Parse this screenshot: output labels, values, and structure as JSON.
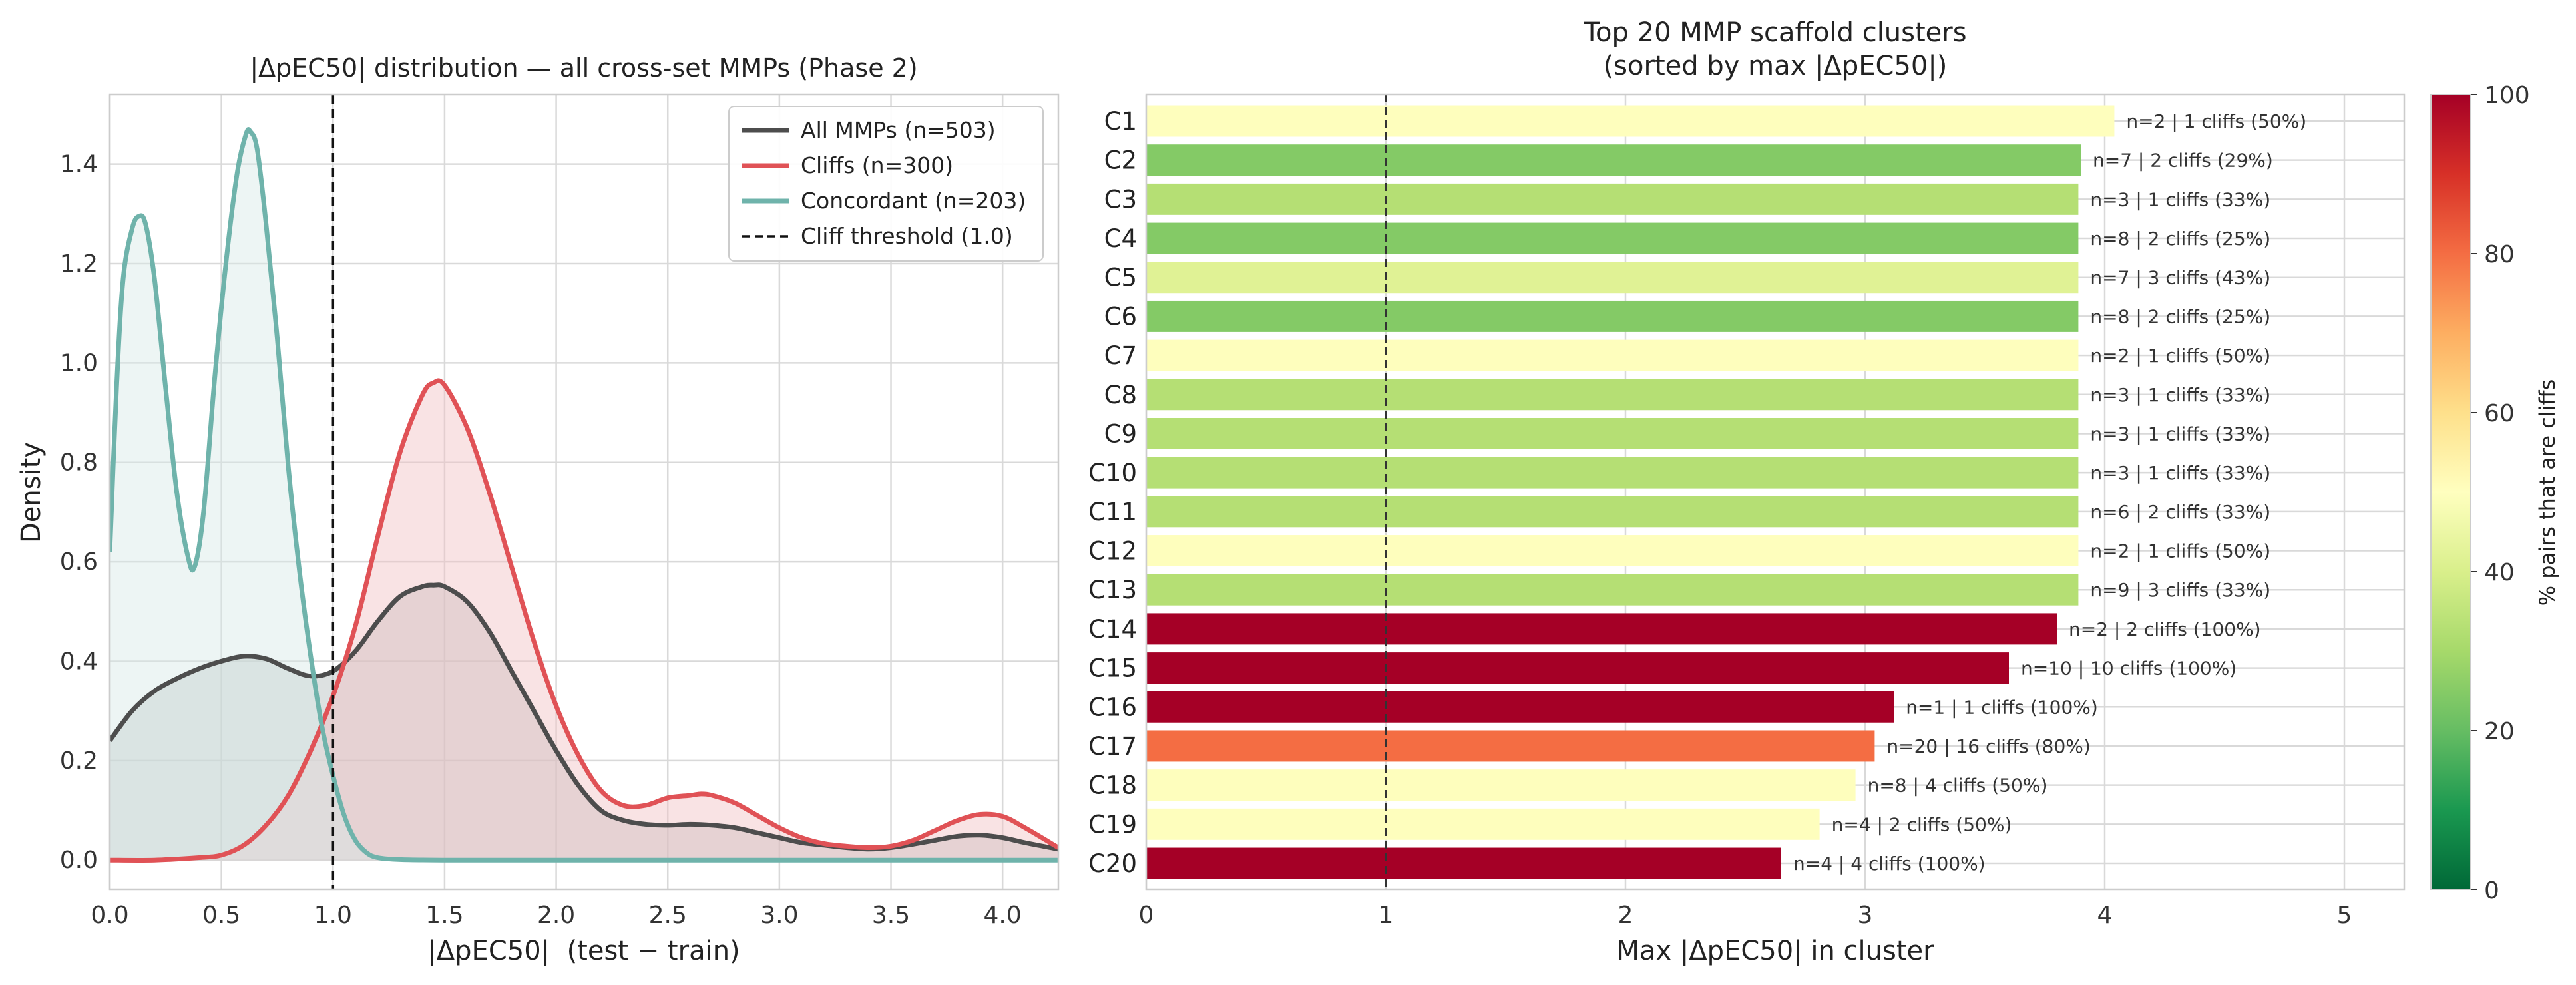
{
  "chart_data": [
    {
      "type": "line",
      "title": "|ΔpEC50| distribution — all cross-set MMPs (Phase 2)",
      "xlabel": "|ΔpEC50|  (test − train)",
      "ylabel": "Density",
      "xlim": [
        0,
        4.25
      ],
      "ylim": [
        -0.06,
        1.54
      ],
      "xticks": [
        0.0,
        0.5,
        1.0,
        1.5,
        2.0,
        2.5,
        3.0,
        3.5,
        4.0
      ],
      "xtick_labels": [
        "0.0",
        "0.5",
        "1.0",
        "1.5",
        "2.0",
        "2.5",
        "3.0",
        "3.5",
        "4.0"
      ],
      "yticks": [
        0.0,
        0.2,
        0.4,
        0.6,
        0.8,
        1.0,
        1.2,
        1.4
      ],
      "ytick_labels": [
        "0.0",
        "0.2",
        "0.4",
        "0.6",
        "0.8",
        "1.0",
        "1.2",
        "1.4"
      ],
      "grid": true,
      "legend_position": "top-right",
      "threshold": {
        "x": 1.0,
        "label": "Cliff threshold (1.0)",
        "color": "#111111"
      },
      "series": [
        {
          "name": "All MMPs (n=503)",
          "color": "#4d4d4d",
          "fill": "#b4bcbc",
          "x": [
            0,
            0.1,
            0.2,
            0.3,
            0.4,
            0.5,
            0.6,
            0.7,
            0.8,
            0.9,
            1.0,
            1.1,
            1.2,
            1.3,
            1.4,
            1.45,
            1.5,
            1.6,
            1.7,
            1.8,
            1.9,
            2.0,
            2.1,
            2.2,
            2.3,
            2.4,
            2.5,
            2.6,
            2.7,
            2.8,
            2.9,
            3.0,
            3.1,
            3.2,
            3.3,
            3.4,
            3.5,
            3.6,
            3.7,
            3.8,
            3.9,
            4.0,
            4.1,
            4.25
          ],
          "y": [
            0.24,
            0.3,
            0.34,
            0.365,
            0.385,
            0.4,
            0.41,
            0.405,
            0.385,
            0.37,
            0.38,
            0.42,
            0.48,
            0.53,
            0.55,
            0.553,
            0.55,
            0.52,
            0.46,
            0.38,
            0.3,
            0.22,
            0.15,
            0.1,
            0.08,
            0.072,
            0.07,
            0.072,
            0.07,
            0.065,
            0.055,
            0.045,
            0.035,
            0.03,
            0.025,
            0.022,
            0.025,
            0.032,
            0.04,
            0.048,
            0.05,
            0.045,
            0.035,
            0.022
          ]
        },
        {
          "name": "Cliffs (n=300)",
          "color": "#e05256",
          "fill": "#f2c2c4",
          "x": [
            0,
            0.2,
            0.4,
            0.5,
            0.6,
            0.7,
            0.8,
            0.9,
            1.0,
            1.1,
            1.2,
            1.3,
            1.4,
            1.45,
            1.5,
            1.6,
            1.7,
            1.8,
            1.9,
            2.0,
            2.1,
            2.2,
            2.3,
            2.4,
            2.5,
            2.6,
            2.65,
            2.7,
            2.8,
            2.9,
            3.0,
            3.1,
            3.2,
            3.3,
            3.4,
            3.5,
            3.6,
            3.7,
            3.8,
            3.9,
            4.0,
            4.1,
            4.25
          ],
          "y": [
            0.0,
            0.0,
            0.005,
            0.01,
            0.03,
            0.07,
            0.13,
            0.22,
            0.33,
            0.47,
            0.65,
            0.82,
            0.935,
            0.96,
            0.955,
            0.87,
            0.74,
            0.59,
            0.44,
            0.31,
            0.21,
            0.14,
            0.11,
            0.11,
            0.125,
            0.13,
            0.133,
            0.13,
            0.115,
            0.09,
            0.065,
            0.045,
            0.033,
            0.028,
            0.025,
            0.028,
            0.04,
            0.06,
            0.08,
            0.092,
            0.088,
            0.065,
            0.025
          ]
        },
        {
          "name": "Concordant (n=203)",
          "color": "#6fb3ab",
          "fill": "#d6e9e6",
          "x": [
            0,
            0.03,
            0.06,
            0.1,
            0.13,
            0.16,
            0.2,
            0.25,
            0.3,
            0.35,
            0.38,
            0.42,
            0.47,
            0.52,
            0.57,
            0.61,
            0.63,
            0.66,
            0.7,
            0.75,
            0.8,
            0.85,
            0.9,
            0.95,
            1.0,
            1.05,
            1.1,
            1.15,
            1.2,
            1.3,
            1.5,
            2.0,
            3.0,
            4.25
          ],
          "y": [
            0.62,
            0.95,
            1.17,
            1.27,
            1.295,
            1.28,
            1.17,
            0.95,
            0.74,
            0.61,
            0.59,
            0.7,
            0.97,
            1.2,
            1.38,
            1.46,
            1.465,
            1.43,
            1.28,
            1.05,
            0.79,
            0.58,
            0.41,
            0.27,
            0.17,
            0.09,
            0.04,
            0.015,
            0.005,
            0.001,
            0.0,
            0.0,
            0.0,
            0.0
          ]
        }
      ]
    },
    {
      "type": "bar",
      "orientation": "horizontal",
      "title": "Top 20 MMP scaffold clusters\n(sorted by max |ΔpEC50|)",
      "xlabel": "Max |ΔpEC50| in cluster",
      "ylabel": "",
      "xlim": [
        0,
        5.25
      ],
      "xticks": [
        0,
        1,
        2,
        3,
        4,
        5
      ],
      "xtick_labels": [
        "0",
        "1",
        "2",
        "3",
        "4",
        "5"
      ],
      "grid": true,
      "threshold": {
        "x": 1.0,
        "color": "#333333"
      },
      "categories": [
        "C1",
        "C2",
        "C3",
        "C4",
        "C5",
        "C6",
        "C7",
        "C8",
        "C9",
        "C10",
        "C11",
        "C12",
        "C13",
        "C14",
        "C15",
        "C16",
        "C17",
        "C18",
        "C19",
        "C20"
      ],
      "values": [
        4.04,
        3.9,
        3.89,
        3.89,
        3.89,
        3.89,
        3.89,
        3.89,
        3.89,
        3.89,
        3.89,
        3.89,
        3.89,
        3.8,
        3.6,
        3.12,
        3.04,
        2.96,
        2.81,
        2.65
      ],
      "cliff_pct": [
        50,
        29,
        33,
        25,
        43,
        25,
        50,
        33,
        33,
        33,
        33,
        50,
        33,
        100,
        100,
        100,
        80,
        50,
        50,
        100
      ],
      "colors": [
        "#fefebd",
        "#84ca66",
        "#b5df74",
        "#84ca66",
        "#e0f295",
        "#84ca66",
        "#fefebd",
        "#b5df74",
        "#b5df74",
        "#b5df74",
        "#b5df74",
        "#fefebd",
        "#b5df74",
        "#a50026",
        "#a50026",
        "#a50026",
        "#f46d43",
        "#fefebd",
        "#fefebd",
        "#a50026"
      ],
      "bar_labels": [
        "n=2 | 1 cliffs (50%)",
        "n=7 | 2 cliffs (29%)",
        "n=3 | 1 cliffs (33%)",
        "n=8 | 2 cliffs (25%)",
        "n=7 | 3 cliffs (43%)",
        "n=8 | 2 cliffs (25%)",
        "n=2 | 1 cliffs (50%)",
        "n=3 | 1 cliffs (33%)",
        "n=3 | 1 cliffs (33%)",
        "n=3 | 1 cliffs (33%)",
        "n=6 | 2 cliffs (33%)",
        "n=2 | 1 cliffs (50%)",
        "n=9 | 3 cliffs (33%)",
        "n=2 | 2 cliffs (100%)",
        "n=10 | 10 cliffs (100%)",
        "n=1 | 1 cliffs (100%)",
        "n=20 | 16 cliffs (80%)",
        "n=8 | 4 cliffs (50%)",
        "n=4 | 2 cliffs (50%)",
        "n=4 | 4 cliffs (100%)"
      ],
      "colorbar": {
        "label": "% pairs that are cliffs",
        "range": [
          0,
          100
        ],
        "ticks": [
          0,
          20,
          40,
          60,
          80,
          100
        ],
        "tick_labels": [
          "0",
          "20",
          "40",
          "60",
          "80",
          "100"
        ],
        "colormap": "RdYlGn_r",
        "stops": [
          "#006837",
          "#1a9850",
          "#66bd63",
          "#a6d96a",
          "#d9ef8b",
          "#ffffbf",
          "#fee08b",
          "#fdae61",
          "#f46d43",
          "#d73027",
          "#a50026"
        ]
      }
    }
  ]
}
